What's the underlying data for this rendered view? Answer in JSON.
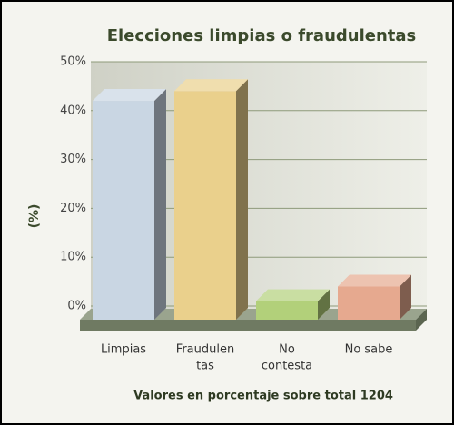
{
  "chart_data": {
    "type": "bar3d",
    "title": "Elecciones limpias o fraudulentas",
    "y_label": "(%)",
    "x_label": "Valores en porcentaje sobre total 1204",
    "categories": [
      [
        "Limpias"
      ],
      [
        "Fraudulen",
        "tas"
      ],
      [
        "No",
        "contesta"
      ],
      [
        "No sabe"
      ]
    ],
    "values": [
      42,
      44,
      1,
      4
    ],
    "colors": [
      "#c9d6e3",
      "#ead08c",
      "#b2d07a",
      "#e6a98f"
    ],
    "ylim": [
      0,
      50
    ],
    "yticks": [
      {
        "value": 0,
        "label": "0%"
      },
      {
        "value": 10,
        "label": "10%"
      },
      {
        "value": 20,
        "label": "20%"
      },
      {
        "value": 30,
        "label": "30%"
      },
      {
        "value": 40,
        "label": "40%"
      },
      {
        "value": 50,
        "label": "50%"
      }
    ],
    "grid": true
  }
}
